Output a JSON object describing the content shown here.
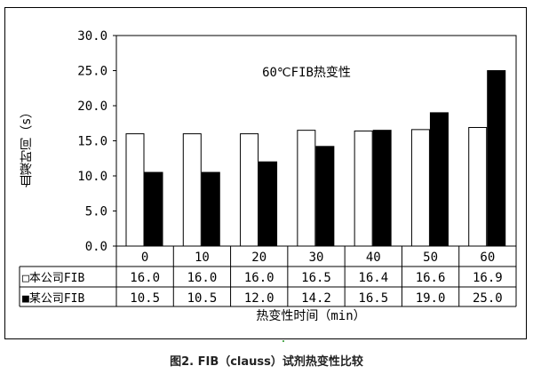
{
  "chart_data": {
    "type": "bar",
    "title": "60℃FIB热变性",
    "xlabel": "热变性时间（min）",
    "ylabel": "血凝时间（s）",
    "ylim": [
      0,
      30
    ],
    "yticks": [
      "0.0",
      "5.0",
      "10.0",
      "15.0",
      "20.0",
      "25.0",
      "30.0"
    ],
    "categories": [
      "0",
      "10",
      "20",
      "30",
      "40",
      "50",
      "60"
    ],
    "series": [
      {
        "name": "本公司FIB",
        "marker": "□",
        "color": "#ffffff",
        "values": [
          16.0,
          16.0,
          16.0,
          16.5,
          16.4,
          16.6,
          16.9
        ],
        "labels": [
          "16.0",
          "16.0",
          "16.0",
          "16.5",
          "16.4",
          "16.6",
          "16.9"
        ]
      },
      {
        "name": "某公司FIB",
        "marker": "■",
        "color": "#000000",
        "values": [
          10.5,
          10.5,
          12.0,
          14.2,
          16.5,
          19.0,
          25.0
        ],
        "labels": [
          "10.5",
          "10.5",
          "12.0",
          "14.2",
          "16.5",
          "19.0",
          "25.0"
        ]
      }
    ],
    "legend": "data-table"
  },
  "caption": "图2. FIB（clauss）试剂热变性比较"
}
